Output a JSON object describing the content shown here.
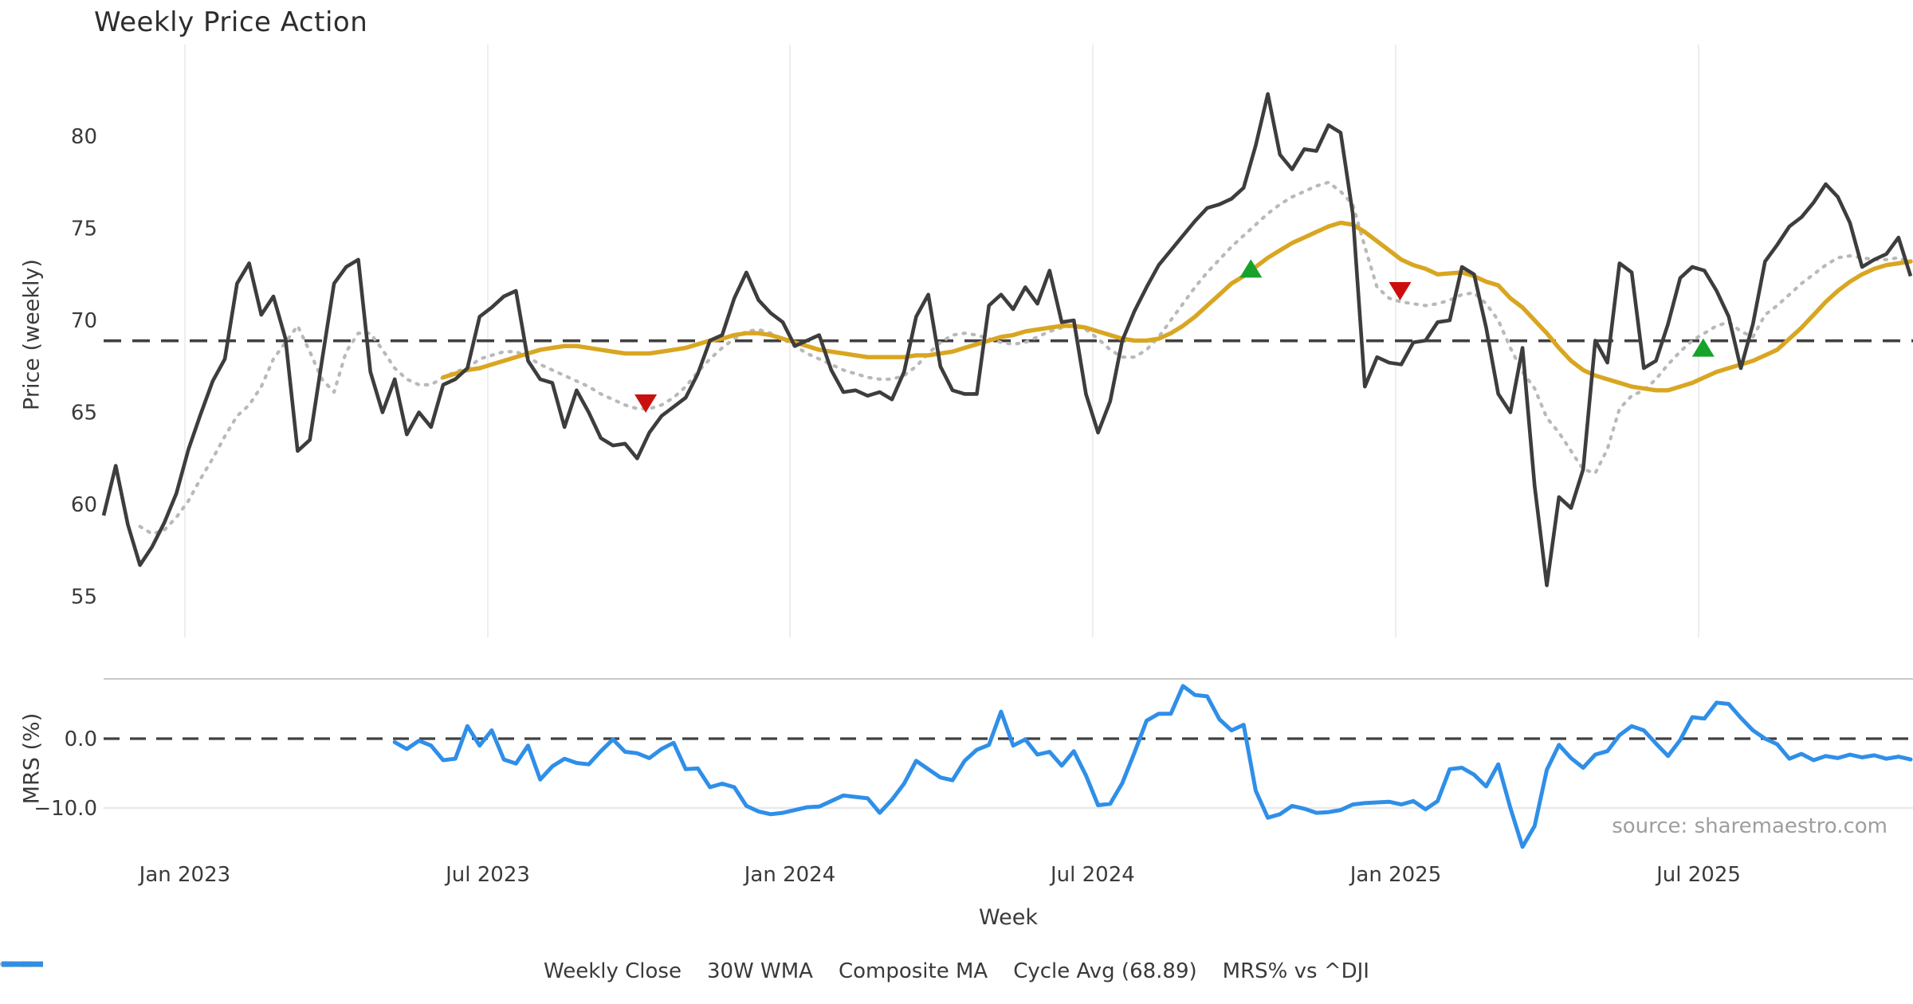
{
  "title": "Weekly Price Action",
  "source_text": "source: sharemaestro.com",
  "axes": {
    "y_label_price": "Price (weekly)",
    "y_label_mrs": "MRS (%)",
    "x_label": "Week",
    "price_tick_labels": [
      "80",
      "75",
      "70",
      "65",
      "60",
      "55"
    ],
    "price_tick_values": [
      80,
      75,
      70,
      65,
      60,
      55
    ],
    "mrs_tick_labels": [
      "0.0",
      "−10.0"
    ],
    "mrs_tick_values": [
      0,
      -10
    ],
    "x_tick_labels": [
      "Jan 2023",
      "Jul 2023",
      "Jan 2024",
      "Jul 2024",
      "Jan 2025",
      "Jul 2025"
    ]
  },
  "colors": {
    "weekly_close": "#3d3d3d",
    "wma": "#d9a621",
    "composite": "#b9b9b9",
    "cycle_avg": "#404040",
    "mrs": "#2f8fe8",
    "buy_marker": "#16a22b",
    "sell_marker": "#cb0f0f",
    "grid": "#eeeeee",
    "panel_border": "#c9c9c9",
    "mrs_grid": "#e9e9e9"
  },
  "legend": {
    "items": [
      {
        "label": "Weekly Close",
        "color": "#3d3d3d",
        "style": "solid"
      },
      {
        "label": "30W WMA",
        "color": "#d9a621",
        "style": "solid"
      },
      {
        "label": "Composite MA",
        "color": "#b9b9b9",
        "style": "dotted"
      },
      {
        "label": "Cycle Avg (68.89)",
        "color": "#404040",
        "style": "dashed"
      },
      {
        "label": "MRS% vs ^DJI",
        "color": "#2f8fe8",
        "style": "solid"
      }
    ]
  },
  "chart_data": {
    "type": "line",
    "title": "Weekly Price Action",
    "xlabel": "Week",
    "x_tick_labels": [
      "Jan 2023",
      "Jul 2023",
      "Jan 2024",
      "Jul 2024",
      "Jan 2025",
      "Jul 2025"
    ],
    "x_tick_indices": [
      6.7,
      31.68,
      56.59,
      81.56,
      106.54,
      131.52
    ],
    "n_points": 150,
    "cycle_avg_value": 68.89,
    "panels": [
      {
        "name": "price",
        "ylabel": "Price (weekly)",
        "ylim": [
          54,
          84.5
        ],
        "grid": "vertical-only",
        "series": [
          {
            "name": "Weekly Close",
            "style": "solid",
            "start_index": 0,
            "values": [
              59.4,
              62.1,
              58.9,
              56.7,
              57.7,
              59.0,
              60.6,
              63.0,
              64.9,
              66.7,
              67.9,
              72.0,
              73.1,
              70.3,
              71.3,
              69.0,
              62.9,
              63.5,
              67.8,
              72.0,
              72.9,
              73.3,
              67.2,
              65.0,
              66.8,
              63.8,
              65.0,
              64.2,
              66.5,
              66.8,
              67.4,
              70.2,
              70.7,
              71.3,
              71.6,
              67.8,
              66.8,
              66.6,
              64.2,
              66.2,
              65.0,
              63.6,
              63.2,
              63.3,
              62.5,
              63.9,
              64.8,
              65.3,
              65.8,
              67.1,
              68.9,
              69.2,
              71.2,
              72.6,
              71.1,
              70.4,
              69.9,
              68.6,
              68.9,
              69.2,
              67.3,
              66.1,
              66.2,
              65.9,
              66.1,
              65.7,
              67.2,
              70.2,
              71.4,
              67.5,
              66.2,
              66.0,
              66.0,
              70.8,
              71.4,
              70.6,
              71.8,
              70.9,
              72.7,
              69.9,
              70.0,
              66.0,
              63.9,
              65.6,
              68.9,
              70.5,
              71.8,
              73.0,
              73.8,
              74.6,
              75.4,
              76.1,
              76.3,
              76.6,
              77.2,
              79.5,
              82.3,
              79.0,
              78.2,
              79.3,
              79.2,
              80.6,
              80.2,
              75.8,
              66.4,
              68.0,
              67.7,
              67.6,
              68.8,
              68.9,
              69.9,
              70.0,
              72.9,
              72.5,
              69.6,
              66.0,
              65.0,
              68.5,
              61.0,
              55.6,
              60.4,
              59.8,
              61.9,
              68.9,
              67.7,
              73.1,
              72.6,
              67.4,
              67.8,
              69.8,
              72.3,
              72.9,
              72.7,
              71.6,
              70.2,
              67.4,
              69.8,
              73.2,
              74.1,
              75.1,
              75.6,
              76.4,
              77.4,
              76.7,
              75.3,
              72.9,
              73.3,
              73.6,
              74.5,
              72.4
            ]
          },
          {
            "name": "30W WMA",
            "style": "solid",
            "start_index": 28,
            "values": [
              66.9,
              67.1,
              67.3,
              67.4,
              67.6,
              67.8,
              68.0,
              68.2,
              68.4,
              68.5,
              68.6,
              68.6,
              68.5,
              68.4,
              68.3,
              68.2,
              68.2,
              68.2,
              68.3,
              68.4,
              68.5,
              68.7,
              68.9,
              69.0,
              69.2,
              69.3,
              69.3,
              69.2,
              69.0,
              68.8,
              68.6,
              68.4,
              68.3,
              68.2,
              68.1,
              68.0,
              68.0,
              68.0,
              68.0,
              68.1,
              68.1,
              68.2,
              68.3,
              68.5,
              68.7,
              68.9,
              69.1,
              69.2,
              69.4,
              69.5,
              69.6,
              69.7,
              69.7,
              69.6,
              69.4,
              69.2,
              69.0,
              68.9,
              68.9,
              69.0,
              69.3,
              69.7,
              70.2,
              70.8,
              71.4,
              72.0,
              72.4,
              72.9,
              73.4,
              73.8,
              74.2,
              74.5,
              74.8,
              75.1,
              75.3,
              75.2,
              74.8,
              74.3,
              73.8,
              73.3,
              73.0,
              72.8,
              72.5,
              72.55,
              72.6,
              72.4,
              72.1,
              71.9,
              71.2,
              70.7,
              70.0,
              69.3,
              68.5,
              67.8,
              67.3,
              67.0,
              66.8,
              66.6,
              66.4,
              66.3,
              66.2,
              66.2,
              66.4,
              66.6,
              66.9,
              67.2,
              67.4,
              67.6,
              67.8,
              68.1,
              68.4,
              69.0,
              69.6,
              70.3,
              71.0,
              71.6,
              72.1,
              72.5,
              72.8,
              73.0,
              73.1,
              73.2
            ]
          },
          {
            "name": "Composite MA",
            "style": "dotted",
            "start_index": 3,
            "values": [
              58.8,
              58.4,
              58.6,
              59.3,
              60.2,
              61.4,
              62.5,
              63.7,
              64.8,
              65.4,
              66.4,
              67.9,
              68.8,
              69.7,
              68.3,
              66.8,
              66.1,
              68.3,
              69.3,
              69.3,
              68.4,
              67.4,
              66.8,
              66.5,
              66.5,
              66.9,
              67.2,
              67.4,
              67.9,
              68.1,
              68.3,
              68.3,
              68.0,
              67.6,
              67.3,
              67.0,
              66.7,
              66.4,
              66.0,
              65.7,
              65.4,
              65.2,
              65.2,
              65.4,
              65.8,
              66.4,
              67.2,
              67.9,
              68.5,
              69.0,
              69.4,
              69.5,
              69.3,
              69.0,
              68.6,
              68.2,
              67.9,
              67.6,
              67.3,
              67.1,
              66.9,
              66.8,
              66.8,
              67.0,
              67.5,
              68.2,
              68.8,
              69.2,
              69.3,
              69.2,
              69.0,
              68.8,
              68.7,
              68.8,
              69.1,
              69.4,
              69.6,
              69.7,
              69.5,
              69.0,
              68.4,
              68.0,
              68.0,
              68.4,
              69.1,
              70.0,
              70.9,
              71.8,
              72.6,
              73.3,
              74.0,
              74.6,
              75.2,
              75.8,
              76.3,
              76.7,
              77.0,
              77.3,
              77.5,
              77.0,
              76.3,
              74.0,
              71.8,
              71.2,
              71.0,
              70.9,
              70.8,
              70.9,
              71.1,
              71.4,
              71.5,
              70.9,
              70.0,
              68.5,
              67.2,
              66.3,
              64.7,
              63.9,
              62.9,
              61.9,
              61.7,
              63.0,
              65.2,
              65.9,
              66.2,
              66.8,
              67.6,
              68.3,
              68.9,
              69.3,
              69.7,
              69.9,
              69.4,
              69.1,
              70.3,
              70.8,
              71.4,
              72.0,
              72.5,
              73.0,
              73.4,
              73.5,
              73.4,
              73.3,
              73.3,
              73.4,
              73.1
            ]
          },
          {
            "name": "Cycle Avg",
            "style": "dashed",
            "value": 68.89
          }
        ],
        "markers": {
          "buy": [
            {
              "index": 94.6,
              "price": 72.8
            },
            {
              "index": 131.9,
              "price": 68.5
            }
          ],
          "sell": [
            {
              "index": 44.7,
              "price": 65.5
            },
            {
              "index": 106.9,
              "price": 71.6
            }
          ]
        }
      },
      {
        "name": "mrs",
        "ylabel": "MRS (%)",
        "ylim": [
          -17.5,
          7
        ],
        "zero_line": 0,
        "series": [
          {
            "name": "MRS% vs ^DJI",
            "style": "solid",
            "start_index": 24,
            "values": [
              -0.5,
              -1.5,
              -0.3,
              -1.0,
              -3.1,
              -2.9,
              1.8,
              -1.0,
              1.2,
              -3.0,
              -3.6,
              -1.0,
              -5.9,
              -4.0,
              -2.9,
              -3.5,
              -3.7,
              -1.8,
              -0.1,
              -1.9,
              -2.1,
              -2.8,
              -1.5,
              -0.6,
              -4.4,
              -4.3,
              -7.0,
              -6.5,
              -7.0,
              -9.7,
              -10.5,
              -10.9,
              -10.7,
              -10.3,
              -9.9,
              -9.8,
              -9.0,
              -8.2,
              -8.4,
              -8.6,
              -10.7,
              -8.8,
              -6.5,
              -3.2,
              -4.4,
              -5.6,
              -6.0,
              -3.2,
              -1.6,
              -0.9,
              3.9,
              -1.0,
              -0.1,
              -2.3,
              -1.9,
              -3.9,
              -1.8,
              -5.3,
              -9.6,
              -9.4,
              -6.4,
              -2.0,
              2.6,
              3.6,
              3.6,
              7.6,
              6.3,
              6.1,
              2.8,
              1.2,
              2.0,
              -7.5,
              -11.4,
              -10.9,
              -9.7,
              -10.1,
              -10.7,
              -10.6,
              -10.3,
              -9.5,
              -9.3,
              -9.2,
              -9.1,
              -9.5,
              -9.0,
              -10.2,
              -9.0,
              -4.4,
              -4.2,
              -5.2,
              -6.9,
              -3.7,
              -10.0,
              -15.6,
              -12.6,
              -4.5,
              -0.9,
              -2.8,
              -4.2,
              -2.3,
              -1.8,
              0.5,
              1.8,
              1.2,
              -0.7,
              -2.5,
              -0.2,
              3.1,
              2.9,
              5.2,
              5.0,
              3.0,
              1.2,
              0.0,
              -0.8,
              -2.9,
              -2.2,
              -3.1,
              -2.5,
              -2.8,
              -2.3,
              -2.7,
              -2.4,
              -2.9,
              -2.6,
              -3.0
            ]
          }
        ]
      }
    ]
  }
}
